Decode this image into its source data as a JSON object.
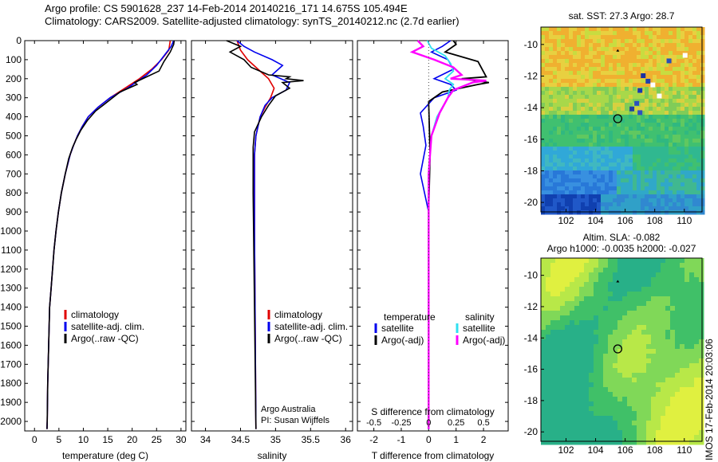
{
  "header": {
    "line1": "Argo profile: CS 5901628_237 14-Feb-2014 20140216_171 14.675S 105.494E",
    "line2": "Climatology: CARS2009. Satellite-adjusted climatology: synTS_20140212.nc (2.7d earlier)"
  },
  "colors": {
    "climatology": "#e00000",
    "satellite": "#0000ee",
    "argo": "#000000",
    "sal_satellite": "#30e0f0",
    "sal_argo": "#ff00ff"
  },
  "chart_data": [
    {
      "id": "temperature",
      "type": "line",
      "xlabel": "temperature (deg C)",
      "ylabel": "",
      "xlim": [
        -2,
        31
      ],
      "ylim": [
        2050,
        0
      ],
      "xticks": [
        0,
        5,
        10,
        15,
        20,
        25,
        30
      ],
      "yticks": [
        0,
        100,
        200,
        300,
        400,
        500,
        600,
        700,
        800,
        900,
        1000,
        1100,
        1200,
        1300,
        1400,
        1500,
        1600,
        1700,
        1800,
        1900,
        2000
      ],
      "legend": [
        "climatology",
        "satellite-adj. clim.",
        "Argo(..raw -QC)"
      ],
      "series": [
        {
          "name": "climatology",
          "x": [
            27.8,
            27.5,
            26,
            24,
            21.5,
            18.5,
            15.5,
            13,
            11,
            9.8,
            8.8,
            8,
            7.3,
            6.3,
            5.5,
            4.9,
            4.4,
            4,
            3.7,
            3.4,
            3.1,
            2.9,
            2.7,
            2.6,
            2.55
          ],
          "y": [
            0,
            50,
            100,
            150,
            200,
            250,
            300,
            350,
            400,
            450,
            500,
            550,
            600,
            700,
            800,
            900,
            1000,
            1100,
            1200,
            1300,
            1400,
            1600,
            1800,
            2000,
            2040
          ]
        },
        {
          "name": "satellite-adj. clim.",
          "x": [
            28.5,
            28,
            26.5,
            25,
            23,
            19,
            15.5,
            13,
            11,
            9.8,
            8.8,
            8,
            7.3,
            6.3,
            5.5,
            4.9,
            4.4,
            4,
            3.7,
            3.4,
            3.1,
            2.9,
            2.7,
            2.6,
            2.55
          ],
          "y": [
            0,
            30,
            80,
            130,
            180,
            250,
            300,
            350,
            400,
            450,
            500,
            550,
            600,
            700,
            800,
            900,
            1000,
            1100,
            1200,
            1300,
            1400,
            1600,
            1800,
            2000,
            2040
          ]
        },
        {
          "name": "Argo(..raw -QC)",
          "x": [
            28.6,
            28.5,
            27.8,
            26.5,
            25.5,
            23,
            20.5,
            21,
            17.5,
            15,
            12.5,
            10.8,
            9.5,
            8.5,
            7.8,
            7,
            6.3,
            5.5,
            4.9,
            4.4,
            4,
            3.7,
            3.4,
            3.1,
            2.9,
            2.7,
            2.6,
            2.55
          ],
          "y": [
            0,
            20,
            60,
            110,
            160,
            190,
            220,
            230,
            270,
            320,
            370,
            420,
            470,
            520,
            560,
            620,
            700,
            800,
            900,
            1000,
            1100,
            1200,
            1300,
            1400,
            1600,
            1800,
            2000,
            2040
          ]
        }
      ]
    },
    {
      "id": "salinity",
      "type": "line",
      "xlabel": "salinity",
      "ylabel": "",
      "xlim": [
        33.8,
        36.1
      ],
      "ylim": [
        2050,
        0
      ],
      "xticks": [
        34,
        34.5,
        35,
        35.5,
        36
      ],
      "xtick_labels": [
        "34",
        "34.5",
        "35",
        "35.5",
        "36"
      ],
      "legend": [
        "climatology",
        "satellite-adj. clim.",
        "Argo(..raw -QC)"
      ],
      "annotations": [
        "Argo Australia",
        "PI: Susan Wijffels"
      ],
      "series": [
        {
          "name": "climatology",
          "x": [
            34.45,
            34.5,
            34.6,
            34.75,
            34.9,
            34.98,
            34.93,
            34.85,
            34.78,
            34.72,
            34.7,
            34.7,
            34.72
          ],
          "y": [
            0,
            50,
            100,
            150,
            200,
            250,
            300,
            350,
            400,
            500,
            600,
            1000,
            2040
          ]
        },
        {
          "name": "satellite-adj. clim.",
          "x": [
            34.45,
            34.55,
            34.7,
            34.95,
            35.1,
            34.95,
            35.2,
            35.15,
            34.95,
            34.85,
            34.78,
            34.72,
            34.7,
            34.7,
            34.72
          ],
          "y": [
            0,
            30,
            60,
            100,
            130,
            180,
            220,
            260,
            300,
            340,
            400,
            500,
            600,
            1000,
            2040
          ]
        },
        {
          "name": "Argo(..raw -QC)",
          "x": [
            34.3,
            34.5,
            34.35,
            34.55,
            34.65,
            34.9,
            35.2,
            35.15,
            35.4,
            35.1,
            35.2,
            35.0,
            34.9,
            34.8,
            34.7,
            34.68,
            34.68,
            34.7,
            34.72
          ],
          "y": [
            0,
            30,
            60,
            100,
            140,
            180,
            190,
            200,
            210,
            220,
            250,
            290,
            340,
            400,
            480,
            560,
            800,
            1400,
            2040
          ]
        }
      ]
    },
    {
      "id": "differences",
      "type": "line",
      "xlabel": "T difference from climatology",
      "ylabel": "",
      "xlim": [
        -2.6,
        2.9
      ],
      "ylim": [
        2050,
        0
      ],
      "xticks": [
        -2,
        -1,
        0,
        1,
        2
      ],
      "xtick_labels": [
        "-2",
        "-1",
        "0",
        "1",
        "2"
      ],
      "secondary_xlabel": "S difference from climatology",
      "secondary_xticks": [
        -0.5,
        -0.25,
        0,
        0.25,
        0.5
      ],
      "secondary_xtick_labels": [
        "-0.5",
        "-0.25",
        "0",
        "0.25",
        "0.5"
      ],
      "legend": [
        "temperature",
        "satellite",
        "Argo(-adj)",
        "salinity",
        "satellite",
        "Argo(-adj)"
      ],
      "series": [
        {
          "name": "temperature satellite",
          "x": [
            0.8,
            0.5,
            0.1,
            0.7,
            0.9,
            0.2,
            0.8,
            1.0,
            0.2,
            -0.3,
            -0.2,
            -0.1,
            -0.3,
            0,
            0,
            0
          ],
          "y": [
            0,
            30,
            60,
            100,
            150,
            200,
            230,
            260,
            300,
            380,
            450,
            550,
            700,
            900,
            1400,
            2040
          ]
        },
        {
          "name": "temperature Argo(-adj)",
          "x": [
            0.9,
            1.0,
            0.6,
            1.8,
            2.1,
            1.2,
            2.2,
            1.8,
            0.5,
            0,
            0.05,
            0,
            0,
            0,
            0
          ],
          "y": [
            0,
            20,
            60,
            110,
            190,
            200,
            220,
            230,
            270,
            320,
            600,
            900,
            1300,
            1700,
            2040
          ]
        },
        {
          "name": "salinity satellite",
          "x": [
            -0.05,
            0.1,
            0.6,
            0.8,
            0.9,
            0.6,
            0.9,
            0.75,
            0.7,
            0.3,
            0.1,
            0,
            0,
            0
          ],
          "y": [
            0,
            40,
            80,
            120,
            160,
            200,
            230,
            260,
            300,
            400,
            500,
            700,
            1400,
            2040
          ]
        },
        {
          "name": "salinity Argo(-adj)",
          "x": [
            -0.4,
            -0.2,
            -0.6,
            0.2,
            0.9,
            1.2,
            0.8,
            2.1,
            1.6,
            0.9,
            0.7,
            0.4,
            0.1,
            0,
            0,
            0
          ],
          "y": [
            0,
            30,
            60,
            100,
            140,
            180,
            200,
            210,
            220,
            260,
            300,
            380,
            500,
            700,
            1400,
            2040
          ]
        }
      ]
    },
    {
      "id": "sst-map",
      "type": "heatmap",
      "title": "sat. SST: 27.3 Argo: 28.7",
      "xlim": [
        100.3,
        111.2
      ],
      "ylim": [
        -20.6,
        -8.9
      ],
      "xticks": [
        102,
        104,
        106,
        108,
        110
      ],
      "yticks": [
        -10,
        -12,
        -14,
        -16,
        -18,
        -20
      ],
      "marker": {
        "lon": 105.5,
        "lat": -14.7
      }
    },
    {
      "id": "sla-map",
      "type": "heatmap",
      "title_line1": "Altim. SLA: -0.082",
      "title_line2": "Argo h1000: -0.0035 h2000: -0.027",
      "xlim": [
        100.3,
        111.2
      ],
      "ylim": [
        -20.6,
        -8.9
      ],
      "xticks": [
        102,
        104,
        106,
        108,
        110
      ],
      "yticks": [
        -10,
        -12,
        -14,
        -16,
        -18,
        -20
      ],
      "marker": {
        "lon": 105.5,
        "lat": -14.7
      }
    }
  ],
  "footer": {
    "side_stamp": "IMOS 17-Feb-2014 20:03:06"
  }
}
